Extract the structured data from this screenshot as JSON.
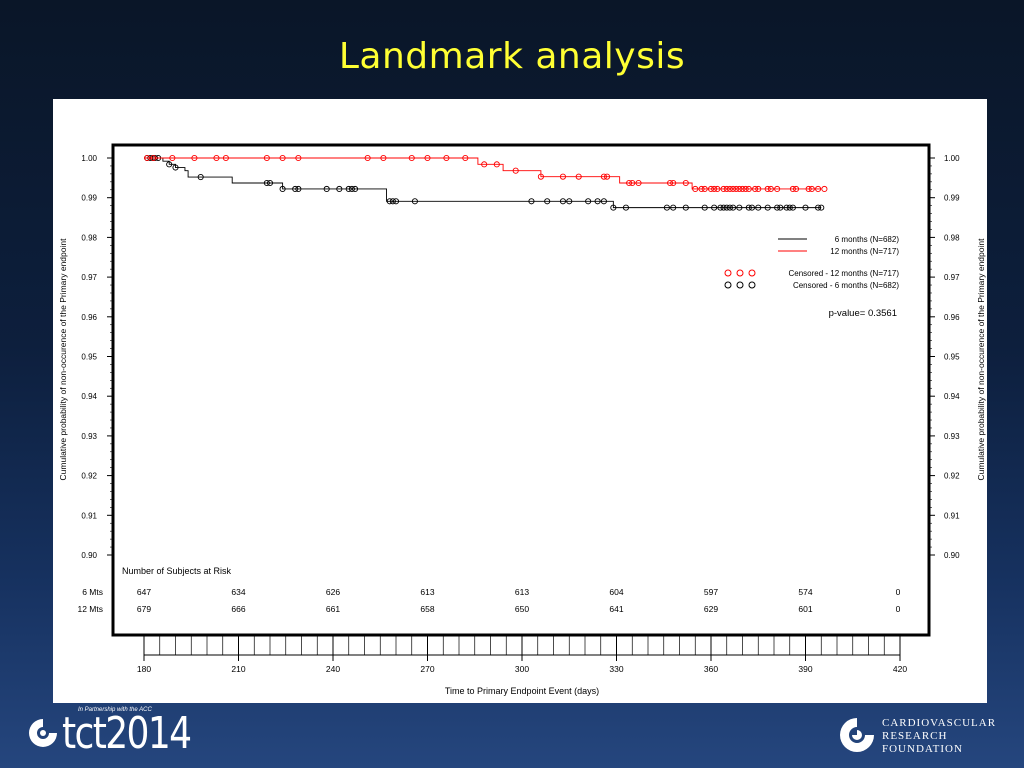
{
  "slide": {
    "title": "Landmark analysis"
  },
  "chart_data": {
    "type": "line",
    "subtype": "kaplan-meier",
    "xlabel": "Time to Primary Endpoint Event (days)",
    "ylabel": "Cumulative probability of non-occurence of the Primary endpoint",
    "xlim": [
      180,
      420
    ],
    "ylim": [
      0.9,
      1.0
    ],
    "xticks": [
      180,
      210,
      240,
      270,
      300,
      330,
      360,
      390,
      420
    ],
    "yticks": [
      "0.90",
      "0.91",
      "0.92",
      "0.93",
      "0.94",
      "0.95",
      "0.96",
      "0.97",
      "0.98",
      "0.99",
      "1.00"
    ],
    "x_minor_step": 5,
    "y_minor_step": 0.002,
    "grid": false,
    "legend_position": "right",
    "series": [
      {
        "name": "6 months (N=682)",
        "color": "#000000",
        "steps": [
          [
            180,
            1.0
          ],
          [
            186,
            0.9992
          ],
          [
            188,
            0.9984
          ],
          [
            190,
            0.9976
          ],
          [
            193,
            0.9968
          ],
          [
            194,
            0.9952
          ],
          [
            208,
            0.9937
          ],
          [
            219,
            0.9937
          ],
          [
            224,
            0.9922
          ],
          [
            237,
            0.9922
          ],
          [
            255,
            0.9922
          ],
          [
            257,
            0.9891
          ],
          [
            265,
            0.9891
          ],
          [
            287,
            0.9891
          ],
          [
            328,
            0.9891
          ],
          [
            329,
            0.9875
          ],
          [
            395,
            0.9875
          ]
        ],
        "censored": [
          181,
          182,
          182.8,
          183.5,
          184.5,
          188,
          190,
          198,
          219,
          220,
          224,
          228,
          229,
          238,
          242,
          245,
          246,
          247,
          258,
          259,
          260,
          266,
          303,
          308,
          313,
          315,
          321,
          324,
          326,
          329,
          333,
          346,
          348,
          352,
          358,
          361,
          363,
          364,
          365,
          366,
          367,
          369,
          372,
          373,
          375,
          378,
          381,
          382,
          384,
          385,
          386,
          390,
          394,
          395
        ]
      },
      {
        "name": "12 months (N=717)",
        "color": "#ff0000",
        "steps": [
          [
            180,
            1.0
          ],
          [
            285,
            1.0
          ],
          [
            286,
            0.9984
          ],
          [
            294,
            0.9968
          ],
          [
            303,
            0.9968
          ],
          [
            306,
            0.9953
          ],
          [
            316,
            0.9953
          ],
          [
            319,
            0.9953
          ],
          [
            331,
            0.9937
          ],
          [
            351,
            0.9937
          ],
          [
            354,
            0.9922
          ],
          [
            395,
            0.9922
          ]
        ],
        "censored": [
          181,
          183,
          189,
          196,
          203,
          206,
          219,
          224,
          229,
          251,
          256,
          265,
          270,
          276,
          282,
          288,
          292,
          298,
          306,
          313,
          318,
          326,
          327,
          334,
          335,
          337,
          347,
          348,
          352,
          355,
          357,
          358,
          360,
          361,
          362,
          364,
          365,
          366,
          367,
          368,
          369,
          370,
          371,
          372,
          374,
          375,
          378,
          379,
          381,
          386,
          387,
          391,
          392,
          394,
          396
        ]
      }
    ],
    "legend": {
      "lines": [
        "6 months (N=682)",
        "12 months (N=717)"
      ],
      "censored": [
        "Censored - 12 months (N=717)",
        "Censored - 6 months (N=682)"
      ]
    },
    "annotation": "p-value= 0.3561",
    "risk_table": {
      "heading": "Number of Subjects at Risk",
      "rows": [
        {
          "label": "6 Mts",
          "values": [
            "647",
            "634",
            "626",
            "613",
            "613",
            "604",
            "597",
            "574",
            "0"
          ]
        },
        {
          "label": "12 Mts",
          "values": [
            "679",
            "666",
            "661",
            "658",
            "650",
            "641",
            "629",
            "601",
            "0"
          ]
        }
      ],
      "times": [
        180,
        210,
        240,
        270,
        300,
        330,
        360,
        390,
        420
      ]
    }
  },
  "footer": {
    "tct_tagline": "In Partnership with the ACC",
    "tct_wordmark": "tct2014",
    "crf_lines": [
      "CARDIOVASCULAR",
      "RESEARCH",
      "FOUNDATION"
    ]
  }
}
